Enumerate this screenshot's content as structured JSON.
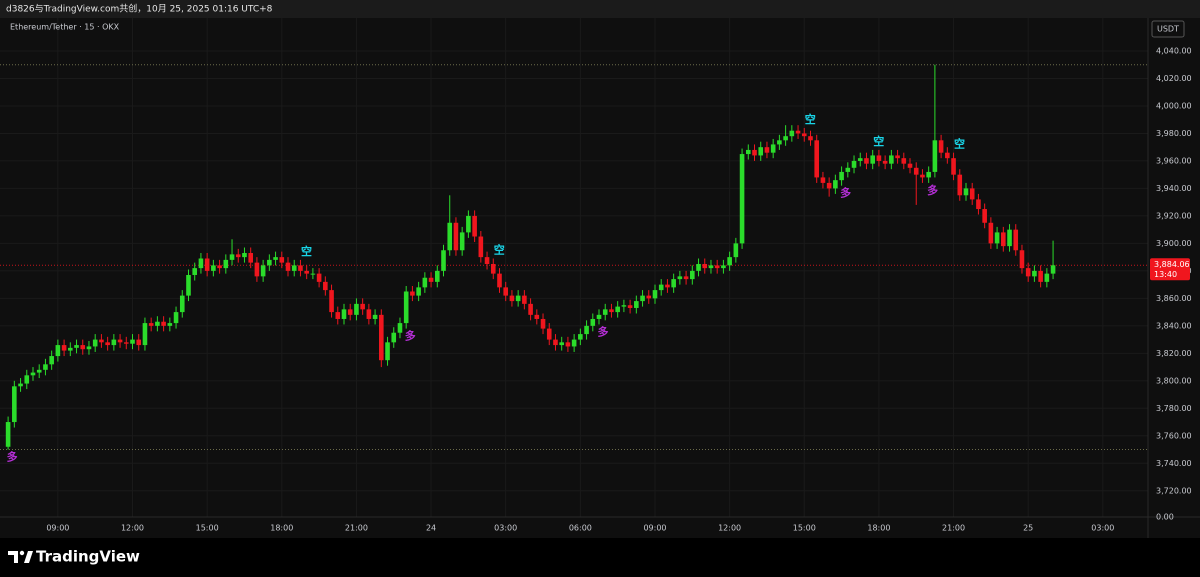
{
  "header": {
    "attribution": "d3826与TradingView.com共创，10月 25, 2025 01:16 UTC+8"
  },
  "chart_data": {
    "type": "candlestick",
    "title": "Ethereum/Tether · 15 · OKX",
    "currency": "USDT",
    "up_color": "#2bdc2b",
    "down_color": "#f0161e",
    "signal_colors": {
      "空": "#19d3e6",
      "多": "#b52fd6"
    },
    "grid": true,
    "categories": [
      null,
      null,
      null,
      null,
      null,
      null,
      null,
      null,
      "09:00",
      null,
      null,
      null,
      null,
      null,
      null,
      null,
      null,
      null,
      null,
      null,
      "12:00",
      null,
      null,
      null,
      null,
      null,
      null,
      null,
      null,
      null,
      null,
      null,
      "15:00",
      null,
      null,
      null,
      null,
      null,
      null,
      null,
      null,
      null,
      null,
      null,
      "18:00",
      null,
      null,
      null,
      null,
      null,
      null,
      null,
      null,
      null,
      null,
      null,
      "21:00",
      null,
      null,
      null,
      null,
      null,
      null,
      null,
      null,
      null,
      null,
      null,
      "24",
      null,
      null,
      null,
      null,
      null,
      null,
      null,
      null,
      null,
      null,
      null,
      "03:00",
      null,
      null,
      null,
      null,
      null,
      null,
      null,
      null,
      null,
      null,
      null,
      "06:00",
      null,
      null,
      null,
      null,
      null,
      null,
      null,
      null,
      null,
      null,
      null,
      "09:00",
      null,
      null,
      null,
      null,
      null,
      null,
      null,
      null,
      null,
      null,
      null,
      "12:00",
      null,
      null,
      null,
      null,
      null,
      null,
      null,
      null,
      null,
      null,
      null,
      "15:00",
      null,
      null,
      null,
      null,
      null,
      null,
      null,
      null,
      null,
      null,
      null,
      "18:00",
      null,
      null,
      null,
      null,
      null,
      null,
      null,
      null,
      null,
      null,
      null,
      "21:00",
      null,
      null,
      null,
      null,
      null,
      null,
      null,
      null,
      null,
      null,
      null,
      "25",
      null,
      null,
      null,
      null,
      null,
      null,
      null,
      null,
      null,
      null,
      null,
      "03:00"
    ],
    "open": [
      3752,
      3770,
      3796,
      3798,
      3804,
      3806,
      3808,
      3812,
      3818,
      3826,
      3822,
      3824,
      3826,
      3823,
      3825,
      3830,
      3828,
      3826,
      3830,
      3828,
      3827,
      3830,
      3826,
      3842,
      3840,
      3843,
      3840,
      3842,
      3850,
      3862,
      3877,
      3882,
      3889,
      3880,
      3884,
      3882,
      3888,
      3892,
      3890,
      3893,
      3886,
      3876,
      3884,
      3888,
      3890,
      3886,
      3880,
      3884,
      3880,
      3878,
      3878,
      3872,
      3866,
      3850,
      3845,
      3852,
      3848,
      3856,
      3852,
      3845,
      3848,
      3815,
      3828,
      3835,
      3842,
      3865,
      3862,
      3868,
      3875,
      3872,
      3880,
      3895,
      3915,
      3895,
      3908,
      3920,
      3905,
      3890,
      3885,
      3878,
      3868,
      3862,
      3858,
      3862,
      3856,
      3848,
      3845,
      3838,
      3830,
      3826,
      3828,
      3825,
      3830,
      3834,
      3840,
      3845,
      3848,
      3852,
      3850,
      3854,
      3855,
      3853,
      3858,
      3862,
      3860,
      3866,
      3870,
      3868,
      3874,
      3876,
      3874,
      3880,
      3885,
      3882,
      3884,
      3882,
      3884,
      3890,
      3900,
      3965,
      3968,
      3964,
      3970,
      3966,
      3972,
      3975,
      3978,
      3982,
      3980,
      3978,
      3975,
      3948,
      3944,
      3940,
      3946,
      3952,
      3955,
      3960,
      3962,
      3958,
      3964,
      3960,
      3958,
      3964,
      3962,
      3958,
      3955,
      3950,
      3948,
      3952,
      3975,
      3966,
      3962,
      3950,
      3935,
      3940,
      3932,
      3925,
      3915,
      3900,
      3908,
      3898,
      3910,
      3895,
      3882,
      3876,
      3880,
      3872,
      3878,
      null,
      null,
      null,
      null,
      null,
      null,
      null,
      null
    ],
    "high": [
      3774,
      3800,
      3802,
      3808,
      3810,
      3812,
      3816,
      3822,
      3830,
      3830,
      3828,
      3830,
      3830,
      3829,
      3834,
      3834,
      3832,
      3834,
      3834,
      3832,
      3834,
      3834,
      3846,
      3846,
      3847,
      3847,
      3846,
      3854,
      3866,
      3881,
      3886,
      3893,
      3893,
      3888,
      3888,
      3892,
      3903,
      3896,
      3897,
      3897,
      3890,
      3888,
      3892,
      3894,
      3894,
      3890,
      3888,
      3888,
      3884,
      3882,
      3882,
      3876,
      3870,
      3854,
      3856,
      3856,
      3860,
      3860,
      3856,
      3852,
      3852,
      3832,
      3839,
      3846,
      3869,
      3869,
      3872,
      3879,
      3879,
      3884,
      3899,
      3935,
      3919,
      3912,
      3924,
      3924,
      3909,
      3894,
      3889,
      3882,
      3872,
      3866,
      3866,
      3866,
      3860,
      3852,
      3849,
      3842,
      3834,
      3832,
      3832,
      3834,
      3838,
      3844,
      3849,
      3852,
      3856,
      3856,
      3858,
      3859,
      3859,
      3862,
      3866,
      3866,
      3870,
      3874,
      3874,
      3878,
      3880,
      3880,
      3884,
      3889,
      3889,
      3888,
      3888,
      3888,
      3894,
      3904,
      3969,
      3972,
      3972,
      3974,
      3974,
      3976,
      3979,
      3986,
      3986,
      3986,
      3984,
      3982,
      3979,
      3952,
      3948,
      3950,
      3956,
      3959,
      3964,
      3966,
      3966,
      3968,
      3968,
      3964,
      3968,
      3968,
      3966,
      3962,
      3959,
      3954,
      3956,
      4030,
      3979,
      3970,
      3966,
      3954,
      3944,
      3944,
      3936,
      3929,
      3919,
      3912,
      3912,
      3914,
      3914,
      3899,
      3886,
      3884,
      3884,
      3882,
      3902,
      null,
      null,
      null,
      null,
      null,
      null,
      null,
      null
    ],
    "low": [
      3750,
      3766,
      3792,
      3794,
      3800,
      3802,
      3804,
      3808,
      3814,
      3818,
      3818,
      3820,
      3819,
      3819,
      3821,
      3824,
      3822,
      3822,
      3824,
      3823,
      3823,
      3822,
      3822,
      3836,
      3836,
      3836,
      3836,
      3838,
      3846,
      3858,
      3873,
      3878,
      3876,
      3876,
      3878,
      3878,
      3884,
      3886,
      3886,
      3882,
      3872,
      3872,
      3880,
      3884,
      3882,
      3876,
      3876,
      3876,
      3874,
      3874,
      3868,
      3862,
      3846,
      3841,
      3841,
      3844,
      3844,
      3848,
      3841,
      3841,
      3810,
      3811,
      3824,
      3831,
      3838,
      3858,
      3858,
      3864,
      3868,
      3868,
      3876,
      3891,
      3891,
      3891,
      3904,
      3901,
      3886,
      3881,
      3874,
      3864,
      3858,
      3854,
      3854,
      3852,
      3844,
      3841,
      3834,
      3826,
      3822,
      3822,
      3821,
      3821,
      3826,
      3830,
      3836,
      3841,
      3844,
      3846,
      3846,
      3850,
      3849,
      3849,
      3854,
      3856,
      3856,
      3862,
      3864,
      3864,
      3870,
      3870,
      3870,
      3876,
      3878,
      3878,
      3878,
      3878,
      3880,
      3886,
      3896,
      3961,
      3960,
      3960,
      3962,
      3962,
      3968,
      3971,
      3974,
      3976,
      3974,
      3971,
      3944,
      3940,
      3934,
      3936,
      3942,
      3948,
      3951,
      3956,
      3954,
      3954,
      3956,
      3954,
      3954,
      3958,
      3954,
      3951,
      3928,
      3944,
      3944,
      3948,
      3962,
      3958,
      3946,
      3931,
      3931,
      3928,
      3921,
      3911,
      3896,
      3896,
      3894,
      3894,
      3891,
      3878,
      3872,
      3872,
      3868,
      3868,
      3874,
      null,
      null,
      null,
      null,
      null,
      null,
      null,
      null
    ],
    "close": [
      3770,
      3796,
      3798,
      3804,
      3806,
      3808,
      3812,
      3818,
      3826,
      3822,
      3824,
      3826,
      3823,
      3825,
      3830,
      3828,
      3826,
      3830,
      3828,
      3827,
      3830,
      3826,
      3842,
      3840,
      3843,
      3840,
      3842,
      3850,
      3862,
      3877,
      3882,
      3889,
      3880,
      3884,
      3882,
      3888,
      3892,
      3890,
      3893,
      3886,
      3876,
      3884,
      3888,
      3890,
      3886,
      3880,
      3884,
      3880,
      3878,
      3878,
      3872,
      3866,
      3850,
      3845,
      3852,
      3848,
      3856,
      3852,
      3845,
      3848,
      3815,
      3828,
      3835,
      3842,
      3865,
      3862,
      3868,
      3875,
      3872,
      3880,
      3895,
      3915,
      3895,
      3908,
      3920,
      3905,
      3890,
      3885,
      3878,
      3868,
      3862,
      3858,
      3862,
      3856,
      3848,
      3845,
      3838,
      3830,
      3826,
      3828,
      3825,
      3830,
      3834,
      3840,
      3845,
      3848,
      3852,
      3850,
      3854,
      3855,
      3853,
      3858,
      3862,
      3860,
      3866,
      3870,
      3868,
      3874,
      3876,
      3874,
      3880,
      3885,
      3882,
      3884,
      3882,
      3884,
      3890,
      3900,
      3965,
      3968,
      3964,
      3970,
      3966,
      3972,
      3975,
      3978,
      3982,
      3980,
      3978,
      3975,
      3948,
      3944,
      3940,
      3946,
      3952,
      3955,
      3960,
      3962,
      3958,
      3964,
      3960,
      3958,
      3964,
      3962,
      3958,
      3955,
      3950,
      3948,
      3952,
      3975,
      3966,
      3962,
      3950,
      3935,
      3940,
      3932,
      3925,
      3915,
      3900,
      3908,
      3898,
      3910,
      3895,
      3882,
      3876,
      3880,
      3872,
      3878,
      3884.06,
      null,
      null,
      null,
      null,
      null,
      null,
      null,
      null
    ],
    "signals": [
      "多",
      null,
      null,
      null,
      null,
      null,
      null,
      null,
      null,
      null,
      null,
      null,
      null,
      null,
      null,
      null,
      null,
      null,
      null,
      null,
      null,
      null,
      null,
      null,
      null,
      null,
      null,
      null,
      null,
      null,
      null,
      null,
      null,
      null,
      null,
      null,
      null,
      null,
      null,
      null,
      null,
      null,
      null,
      null,
      null,
      null,
      null,
      "空",
      null,
      null,
      null,
      null,
      null,
      null,
      null,
      null,
      null,
      null,
      null,
      null,
      null,
      null,
      null,
      null,
      "多",
      null,
      null,
      null,
      null,
      null,
      null,
      null,
      null,
      null,
      null,
      null,
      null,
      null,
      "空",
      null,
      null,
      null,
      null,
      null,
      null,
      null,
      null,
      null,
      null,
      null,
      null,
      null,
      null,
      null,
      null,
      "多",
      null,
      null,
      null,
      null,
      null,
      null,
      null,
      null,
      null,
      null,
      null,
      null,
      null,
      null,
      null,
      null,
      null,
      null,
      null,
      null,
      null,
      null,
      null,
      null,
      null,
      null,
      null,
      null,
      null,
      null,
      null,
      null,
      "空",
      null,
      null,
      null,
      null,
      null,
      "多",
      null,
      null,
      null,
      null,
      "空",
      null,
      null,
      null,
      null,
      null,
      null,
      null,
      null,
      "多",
      null,
      null,
      null,
      "空",
      null,
      null,
      null,
      null,
      null,
      null,
      null,
      null,
      null,
      null,
      null,
      null,
      null,
      null,
      null,
      null,
      null,
      null,
      null,
      null,
      null,
      null
    ],
    "last_price": {
      "value": 3884.06,
      "label": "3,884.06"
    },
    "countdown": "13:40",
    "ylim": [
      3706,
      4064
    ],
    "yticks": [
      {
        "value": 3720,
        "label": "3,720.00"
      },
      {
        "value": 3740,
        "label": "3,740.00"
      },
      {
        "value": 3760,
        "label": "3,760.00"
      },
      {
        "value": 3780,
        "label": "3,780.00"
      },
      {
        "value": 3800,
        "label": "3,800.00"
      },
      {
        "value": 3820,
        "label": "3,820.00"
      },
      {
        "value": 3840,
        "label": "3,840.00"
      },
      {
        "value": 3860,
        "label": "3,860.00"
      },
      {
        "value": 3880,
        "label": "3,880.00"
      },
      {
        "value": 3900,
        "label": "3,900.00"
      },
      {
        "value": 3920,
        "label": "3,920.00"
      },
      {
        "value": 3940,
        "label": "3,940.00"
      },
      {
        "value": 3960,
        "label": "3,960.00"
      },
      {
        "value": 3980,
        "label": "3,980.00"
      },
      {
        "value": 4000,
        "label": "4,000.00"
      },
      {
        "value": 4020,
        "label": "4,020.00"
      },
      {
        "value": 4040,
        "label": "4,040.00"
      }
    ],
    "bottom_label": "0.00"
  },
  "footer": {
    "brand": "TradingView"
  }
}
